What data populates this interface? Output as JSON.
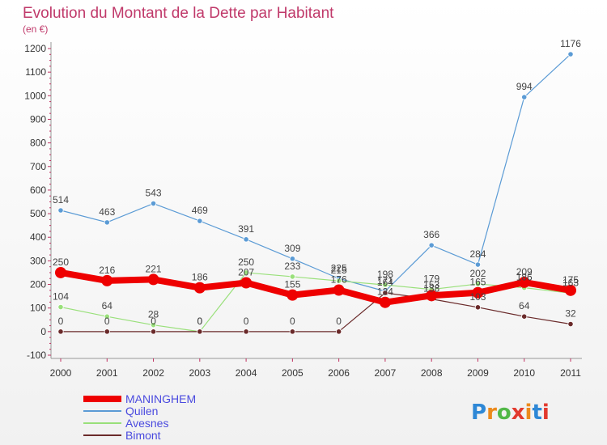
{
  "chart_data": {
    "type": "line",
    "title": "Evolution du Montant de la Dette par Habitant",
    "subtitle": "(en €)",
    "categories": [
      "2000",
      "2001",
      "2002",
      "2003",
      "2004",
      "2005",
      "2006",
      "2007",
      "2008",
      "2009",
      "2010",
      "2011"
    ],
    "ylim": [
      -100,
      1200
    ],
    "yticks": [
      -100,
      0,
      100,
      200,
      300,
      400,
      500,
      600,
      700,
      800,
      900,
      1000,
      1100,
      1200
    ],
    "grid": false,
    "legend_position": "bottom-left",
    "series": [
      {
        "name": "MANINGHEM",
        "color": "#ee0000",
        "width": 8,
        "marker": 7,
        "values": [
          250,
          216,
          221,
          186,
          207,
          155,
          176,
          124,
          153,
          165,
          209,
          175
        ]
      },
      {
        "name": "Quilen",
        "color": "#5b9bd5",
        "width": 1.2,
        "marker": 3.2,
        "values": [
          514,
          463,
          543,
          469,
          391,
          309,
          225,
          171,
          366,
          284,
          994,
          1176
        ]
      },
      {
        "name": "Avesnes",
        "color": "#99e07a",
        "width": 1.2,
        "marker": 3.2,
        "values": [
          104,
          64,
          28,
          0,
          250,
          233,
          215,
          198,
          179,
          202,
          186,
          163
        ]
      },
      {
        "name": "Bimont",
        "color": "#6a2a2a",
        "width": 1.2,
        "marker": 3.2,
        "values": [
          0,
          0,
          0,
          0,
          0,
          0,
          0,
          164,
          138,
          103,
          64,
          32
        ]
      }
    ]
  },
  "logo": {
    "text": "Proxiti"
  }
}
